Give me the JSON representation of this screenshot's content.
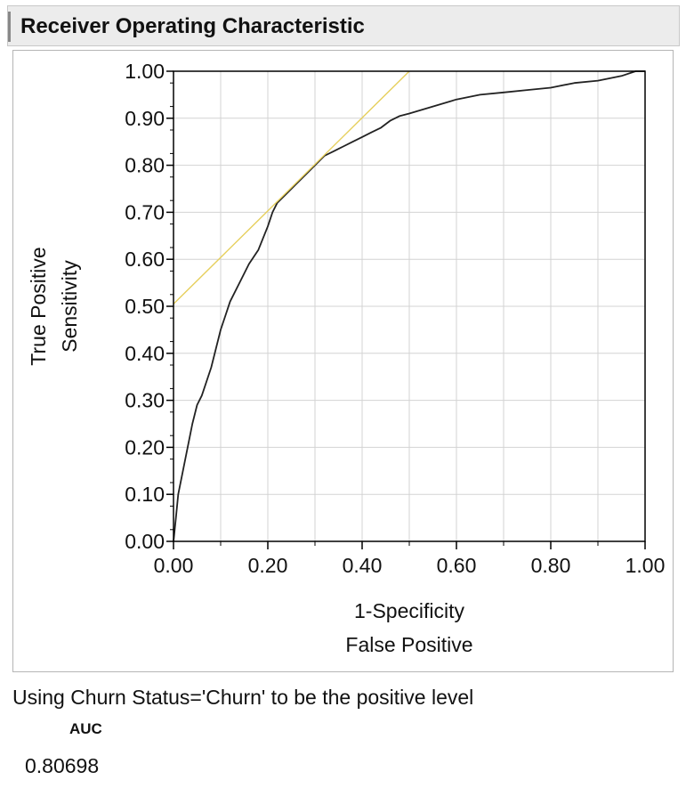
{
  "report": {
    "title": "Receiver Operating Characteristic"
  },
  "chart_data": {
    "type": "line",
    "title": "Receiver Operating Characteristic",
    "xlabel": [
      "1-Specificity",
      "False Positive"
    ],
    "ylabel": [
      "True Positive",
      "Sensitivity"
    ],
    "xlim": [
      0,
      1
    ],
    "ylim": [
      0,
      1
    ],
    "x_ticks": [
      "0.00",
      "0.20",
      "0.40",
      "0.60",
      "0.80",
      "1.00"
    ],
    "y_ticks": [
      "0.00",
      "0.10",
      "0.20",
      "0.30",
      "0.40",
      "0.50",
      "0.60",
      "0.70",
      "0.80",
      "0.90",
      "1.00"
    ],
    "grid": true,
    "series": [
      {
        "color": "#222222",
        "x": [
          0.0,
          0.005,
          0.01,
          0.02,
          0.03,
          0.04,
          0.05,
          0.06,
          0.07,
          0.08,
          0.09,
          0.1,
          0.11,
          0.12,
          0.14,
          0.16,
          0.18,
          0.2,
          0.21,
          0.22,
          0.24,
          0.26,
          0.28,
          0.3,
          0.32,
          0.34,
          0.36,
          0.38,
          0.4,
          0.42,
          0.44,
          0.46,
          0.48,
          0.5,
          0.55,
          0.6,
          0.65,
          0.7,
          0.75,
          0.8,
          0.85,
          0.9,
          0.95,
          0.98,
          1.0
        ],
        "y": [
          0.0,
          0.05,
          0.1,
          0.15,
          0.2,
          0.25,
          0.29,
          0.31,
          0.34,
          0.37,
          0.41,
          0.45,
          0.48,
          0.51,
          0.55,
          0.59,
          0.62,
          0.67,
          0.7,
          0.72,
          0.74,
          0.76,
          0.78,
          0.8,
          0.82,
          0.83,
          0.84,
          0.85,
          0.86,
          0.87,
          0.88,
          0.895,
          0.905,
          0.91,
          0.925,
          0.94,
          0.95,
          0.955,
          0.96,
          0.965,
          0.975,
          0.98,
          0.99,
          1.0,
          1.0
        ]
      },
      {
        "color": "#e6cf5c",
        "x": [
          0.0,
          0.5
        ],
        "y": [
          0.505,
          1.0
        ]
      }
    ]
  },
  "note": "Using Churn Status='Churn' to be the positive level",
  "auc": {
    "header": "AUC",
    "value": "0.80698"
  },
  "colors": {
    "roc_curve": "#222222",
    "tangent_line": "#e6cf5c",
    "grid": "#d3d3d3",
    "header_bg": "#ececec"
  }
}
